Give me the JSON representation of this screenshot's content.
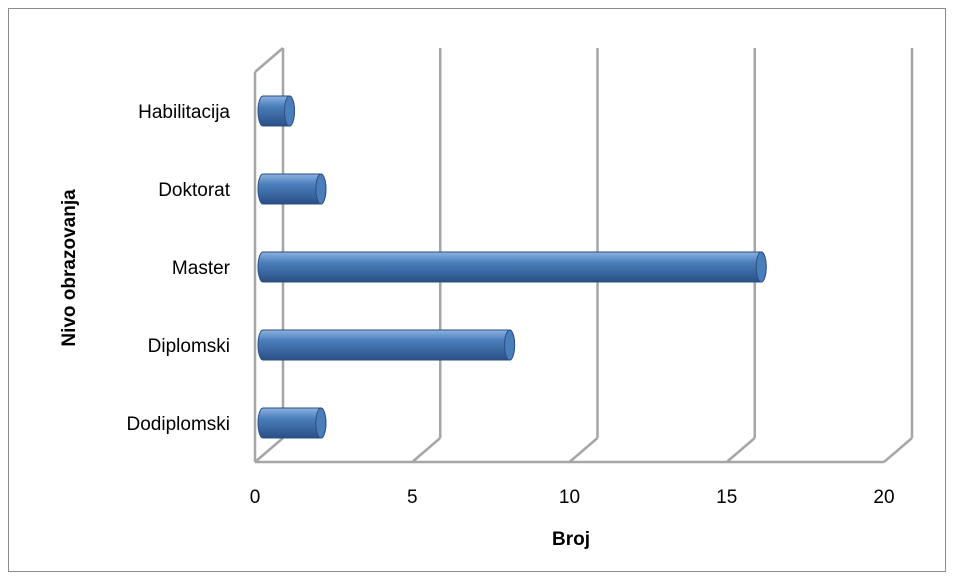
{
  "chart_data": {
    "type": "bar",
    "orientation": "horizontal",
    "style": "3d-cylinder",
    "categories": [
      "Dodiplomski",
      "Diplomski",
      "Master",
      "Doktorat",
      "Habilitacija"
    ],
    "values": [
      2,
      8,
      16,
      2,
      1
    ],
    "xlabel": "Broj",
    "ylabel": "Nivo obrazovanja",
    "xlim": [
      0,
      20
    ],
    "xticks": [
      "0",
      "5",
      "10",
      "15",
      "20"
    ],
    "grid": true,
    "legend": "none",
    "colors": {
      "bar": "#4a7ebb",
      "bar_light": "#8db3e2",
      "bar_dark": "#2a4f85",
      "grid": "#a6a6a6"
    }
  }
}
